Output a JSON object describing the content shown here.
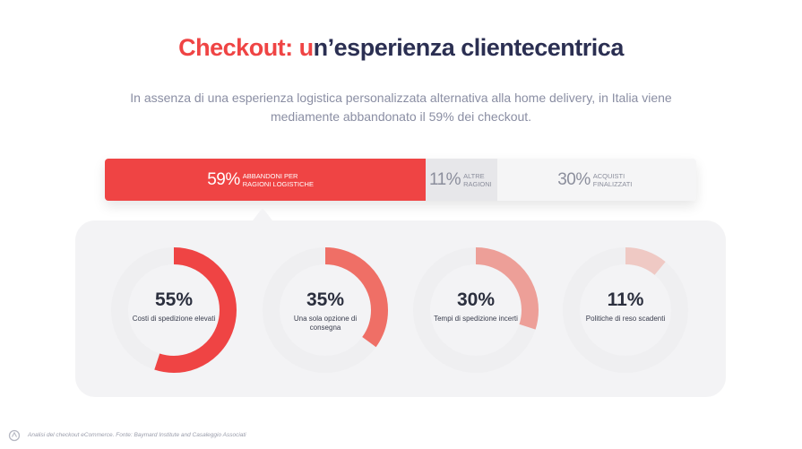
{
  "title": {
    "part1": "Checkout: u",
    "part2": "n’esperienza clientecentrica"
  },
  "subtitle": "In assenza di una esperienza logistica personalizzata alternativa alla home delivery, in Italia viene mediamente abbandonato il 59% dei checkout.",
  "bar": [
    {
      "pct": "59%",
      "label": "ABBANDONI PER RAGIONI LOGISTICHE",
      "value": 59
    },
    {
      "pct": "11%",
      "label": "ALTRE RAGIONI",
      "value": 11
    },
    {
      "pct": "30%",
      "label": "ACQUISTI FINALIZZATI",
      "value": 30
    }
  ],
  "chart_data": [
    {
      "type": "bar",
      "categories": [
        "ABBANDONI PER RAGIONI LOGISTICHE",
        "ALTRE RAGIONI",
        "ACQUISTI FINALIZZATI"
      ],
      "values": [
        59,
        11,
        30
      ]
    },
    {
      "type": "pie",
      "values": [
        55,
        35,
        30,
        11
      ],
      "categories": [
        "Costi di spedizione elevati",
        "Una sola opzione di consegna",
        "Tempi di spedizione incerti",
        "Politiche di reso scadenti"
      ]
    }
  ],
  "donuts": [
    {
      "value": 55,
      "display": "55%",
      "label": "Costi di spedizione elevati",
      "color": "#ef4444"
    },
    {
      "value": 35,
      "display": "35%",
      "label": "Una sola opzione di consegna",
      "color": "#ef6f66"
    },
    {
      "value": 30,
      "display": "30%",
      "label": "Tempi di spedizione incerti",
      "color": "#ed9f98"
    },
    {
      "value": 11,
      "display": "11%",
      "label": "Politiche di reso scadenti",
      "color": "#efc9c4"
    }
  ],
  "colors": {
    "accent": "#ef4444",
    "ring": "#efeff1"
  },
  "footer": "Analisi del checkout eCommerce. Fonte: Baymard Institute and Casaleggio Associati",
  "logo_icon": "brand-logo-icon"
}
